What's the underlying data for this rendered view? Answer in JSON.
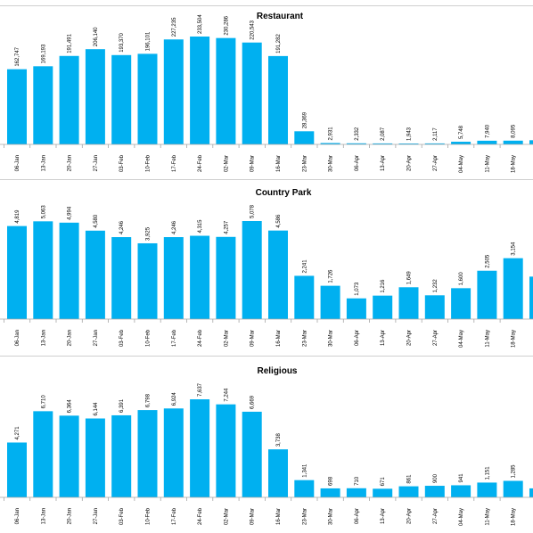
{
  "colors": {
    "bar": "#00b0f0",
    "axis": "#a6a6a6",
    "separator": "#d0d0d0"
  },
  "chart_data": [
    {
      "type": "bar",
      "title": "Restaurant",
      "categories": [
        "06-Jan",
        "13-Jan",
        "20-Jan",
        "27-Jan",
        "03-Feb",
        "10-Feb",
        "17-Feb",
        "24-Feb",
        "02-Mar",
        "09-Mar",
        "16-Mar",
        "23-Mar",
        "30-Mar",
        "06-Apr",
        "13-Apr",
        "20-Apr",
        "27-Apr",
        "04-May",
        "11-May",
        "18-May"
      ],
      "values": [
        162747,
        169193,
        191491,
        206140,
        193370,
        196101,
        227235,
        233504,
        230286,
        220543,
        191282,
        28369,
        2931,
        2332,
        2087,
        1943,
        2117,
        5748,
        7940,
        8095
      ],
      "labels": [
        "162,747",
        "169,193",
        "191,491",
        "206,140",
        "193,370",
        "196,101",
        "227,235",
        "233,504",
        "230,286",
        "220,543",
        "191,282",
        "28,369",
        "2,931",
        "2,332",
        "2,087",
        "1,943",
        "2,117",
        "5,748",
        "7,940",
        "8,095"
      ],
      "partial_last_value": 9000,
      "ylim": [
        0,
        240000
      ],
      "grid": false,
      "legend": "none"
    },
    {
      "type": "bar",
      "title": "Country Park",
      "categories": [
        "06-Jan",
        "13-Jan",
        "20-Jan",
        "27-Jan",
        "03-Feb",
        "10-Feb",
        "17-Feb",
        "24-Feb",
        "02-Mar",
        "09-Mar",
        "16-Mar",
        "23-Mar",
        "30-Mar",
        "06-Apr",
        "13-Apr",
        "20-Apr",
        "27-Apr",
        "04-May",
        "11-May",
        "18-May"
      ],
      "values": [
        4819,
        5063,
        4994,
        4580,
        4246,
        3925,
        4246,
        4315,
        4257,
        5078,
        4586,
        2241,
        1726,
        1073,
        1216,
        1649,
        1232,
        1600,
        2505,
        3154
      ],
      "labels": [
        "4,819",
        "5,063",
        "4,994",
        "4,580",
        "4,246",
        "3,925",
        "4,246",
        "4,315",
        "4,257",
        "5,078",
        "4,586",
        "2,241",
        "1,726",
        "1,073",
        "1,216",
        "1,649",
        "1,232",
        "1,600",
        "2,505",
        "3,154"
      ],
      "partial_last_value": 2200,
      "ylim": [
        0,
        5700
      ],
      "grid": false,
      "legend": "none"
    },
    {
      "type": "bar",
      "title": "Religious",
      "categories": [
        "06-Jan",
        "13-Jan",
        "20-Jan",
        "27-Jan",
        "03-Feb",
        "10-Feb",
        "17-Feb",
        "24-Feb",
        "02-Mar",
        "09-Mar",
        "16-Mar",
        "23-Mar",
        "30-Mar",
        "06-Apr",
        "13-Apr",
        "20-Apr",
        "27-Apr",
        "04-May",
        "11-May",
        "18-May"
      ],
      "values": [
        4271,
        6710,
        6364,
        6144,
        6391,
        6798,
        6924,
        7637,
        7244,
        6669,
        3738,
        1341,
        698,
        710,
        671,
        861,
        900,
        941,
        1151,
        1285
      ],
      "labels": [
        "4,271",
        "6,710",
        "6,364",
        "6,144",
        "6,391",
        "6,798",
        "6,924",
        "7,637",
        "7,244",
        "6,669",
        "3,738",
        "1,341",
        "698",
        "710",
        "671",
        "861",
        "900",
        "941",
        "1,151",
        "1,285"
      ],
      "partial_last_value": 700,
      "ylim": [
        0,
        8000
      ],
      "grid": false,
      "legend": "none"
    }
  ]
}
